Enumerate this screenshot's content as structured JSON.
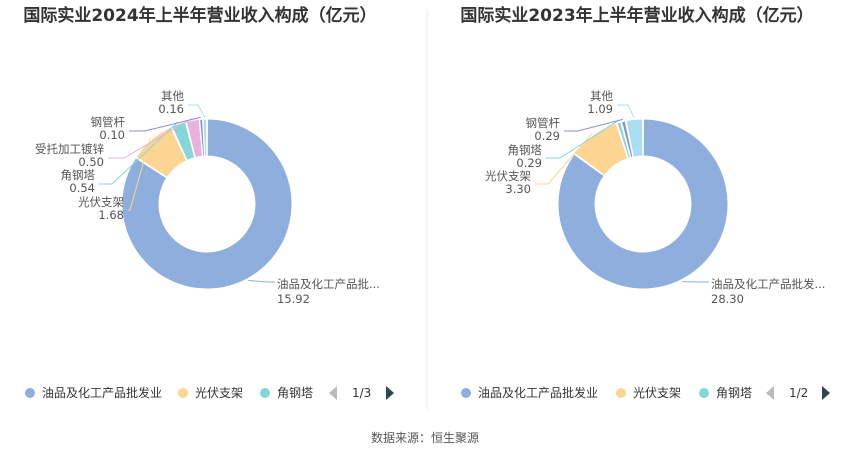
{
  "source": "数据来源：恒生聚源",
  "chart_data": [
    {
      "type": "pie",
      "title": "国际实业2024年上半年营业收入构成（亿元）",
      "slices": [
        {
          "label": "油品及化工产品批...",
          "value": 15.92,
          "value_text": "15.92",
          "color": "#8eaedd"
        },
        {
          "label": "光伏支架",
          "value": 1.68,
          "value_text": "1.68",
          "color": "#fcd592"
        },
        {
          "label": "角钢塔",
          "value": 0.54,
          "value_text": "0.54",
          "color": "#84d6d9"
        },
        {
          "label": "受托加工镀锌",
          "value": 0.5,
          "value_text": "0.50",
          "color": "#e7b3de"
        },
        {
          "label": "钢管杆",
          "value": 0.1,
          "value_text": "0.10",
          "color": "#8a8dd9"
        },
        {
          "label": "其他",
          "value": 0.16,
          "value_text": "0.16",
          "color": "#a9def5"
        }
      ],
      "legend": {
        "items": [
          {
            "label": "油品及化工产品批发业",
            "color": "#8eaedd"
          },
          {
            "label": "光伏支架",
            "color": "#fcd592"
          },
          {
            "label": "角钢塔",
            "color": "#84d6d9"
          }
        ],
        "page": "1/3",
        "placement": "bottom"
      }
    },
    {
      "type": "pie",
      "title": "国际实业2023年上半年营业收入构成（亿元）",
      "slices": [
        {
          "label": "油品及化工产品批发...",
          "value": 28.3,
          "value_text": "28.30",
          "color": "#8eaedd"
        },
        {
          "label": "光伏支架",
          "value": 3.3,
          "value_text": "3.30",
          "color": "#fcd592"
        },
        {
          "label": "角钢塔",
          "value": 0.29,
          "value_text": "0.29",
          "color": "#84d6d9"
        },
        {
          "label": "钢管杆",
          "value": 0.29,
          "value_text": "0.29",
          "color": "#8a8dd9"
        },
        {
          "label": "其他",
          "value": 1.09,
          "value_text": "1.09",
          "color": "#a9def5"
        }
      ],
      "legend": {
        "items": [
          {
            "label": "油品及化工产品批发业",
            "color": "#8eaedd"
          },
          {
            "label": "光伏支架",
            "color": "#fcd592"
          },
          {
            "label": "角钢塔",
            "color": "#84d6d9"
          }
        ],
        "page": "1/2",
        "placement": "bottom"
      }
    }
  ]
}
